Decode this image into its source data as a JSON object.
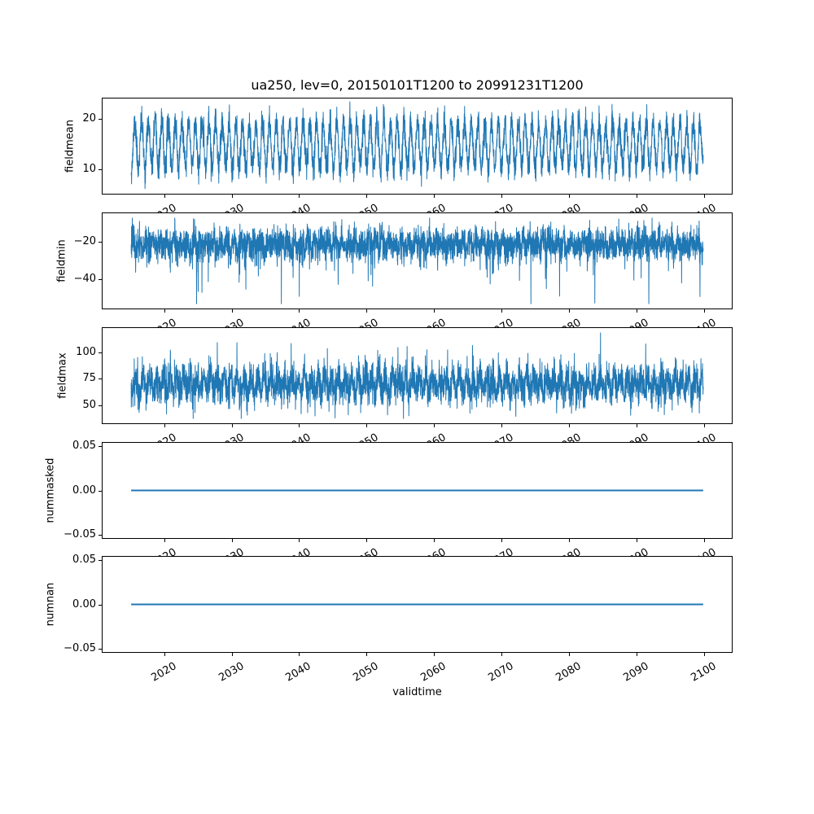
{
  "chart_data": {
    "type": "line",
    "title": "ua250, lev=0, 20150101T1200 to 20991231T1200",
    "xlabel": "validtime",
    "legend": "none",
    "grid": false,
    "colors": {
      "line": "#1f77b4",
      "text": "#000000",
      "spine": "#000000",
      "background": "#ffffff"
    },
    "x": {
      "lim": [
        2010.75,
        2104.25
      ],
      "ticks": [
        2020,
        2030,
        2040,
        2050,
        2060,
        2070,
        2080,
        2090,
        2100
      ],
      "tick_labels": [
        "2020",
        "2030",
        "2040",
        "2050",
        "2060",
        "2070",
        "2080",
        "2090",
        "2100"
      ],
      "tick_rotation_deg": 30,
      "start": 2015.0,
      "end": 2100.0,
      "step_years": 0.02
    },
    "subplots": [
      {
        "ylabel": "fieldmean",
        "ylim": [
          4.9,
          24.3
        ],
        "yticks": [
          10,
          20
        ],
        "ytick_labels": [
          "10",
          "20"
        ],
        "series": {
          "kind": "seasonal-noise",
          "mean": 14.8,
          "seasonal_amplitude": 4.6,
          "noise_sd": 1.5,
          "phase": 0.3,
          "spike_prob": 0,
          "spike_scale": 0,
          "spike_sign": 1,
          "data_min": 5.8,
          "data_max": 24.2,
          "seed": 11
        }
      },
      {
        "ylabel": "fieldmin",
        "ylim": [
          -56.1,
          -4.3
        ],
        "yticks": [
          -40,
          -20
        ],
        "ytick_labels": [
          "−40",
          "−20"
        ],
        "series": {
          "kind": "seasonal-noise",
          "mean": -21.0,
          "seasonal_amplitude": 2.2,
          "noise_sd": 4.2,
          "phase": 0.05,
          "spike_prob": 0.1,
          "spike_scale": 5.5,
          "spike_sign": -1,
          "data_min": -53.5,
          "data_max": -6.9,
          "seed": 22
        }
      },
      {
        "ylabel": "fieldmax",
        "ylim": [
          32.3,
          123.8
        ],
        "yticks": [
          50,
          75,
          100
        ],
        "ytick_labels": [
          "50",
          "75",
          "100"
        ],
        "series": {
          "kind": "seasonal-noise",
          "mean": 69.5,
          "seasonal_amplitude": 7.0,
          "noise_sd": 8.5,
          "phase": 0.55,
          "spike_prob": 0.08,
          "spike_scale": 6.5,
          "spike_sign": 1,
          "data_min": 36.9,
          "data_max": 119.2,
          "seed": 33
        }
      },
      {
        "ylabel": "nummasked",
        "ylim": [
          -0.055,
          0.055
        ],
        "yticks": [
          -0.05,
          0,
          0.05
        ],
        "ytick_labels": [
          "−0.05",
          "0.00",
          "0.05"
        ],
        "series": {
          "kind": "constant",
          "value": 0.0
        }
      },
      {
        "ylabel": "numnan",
        "ylim": [
          -0.055,
          0.055
        ],
        "yticks": [
          -0.05,
          0,
          0.05
        ],
        "ytick_labels": [
          "−0.05",
          "0.00",
          "0.05"
        ],
        "series": {
          "kind": "constant",
          "value": 0.0
        }
      }
    ]
  }
}
